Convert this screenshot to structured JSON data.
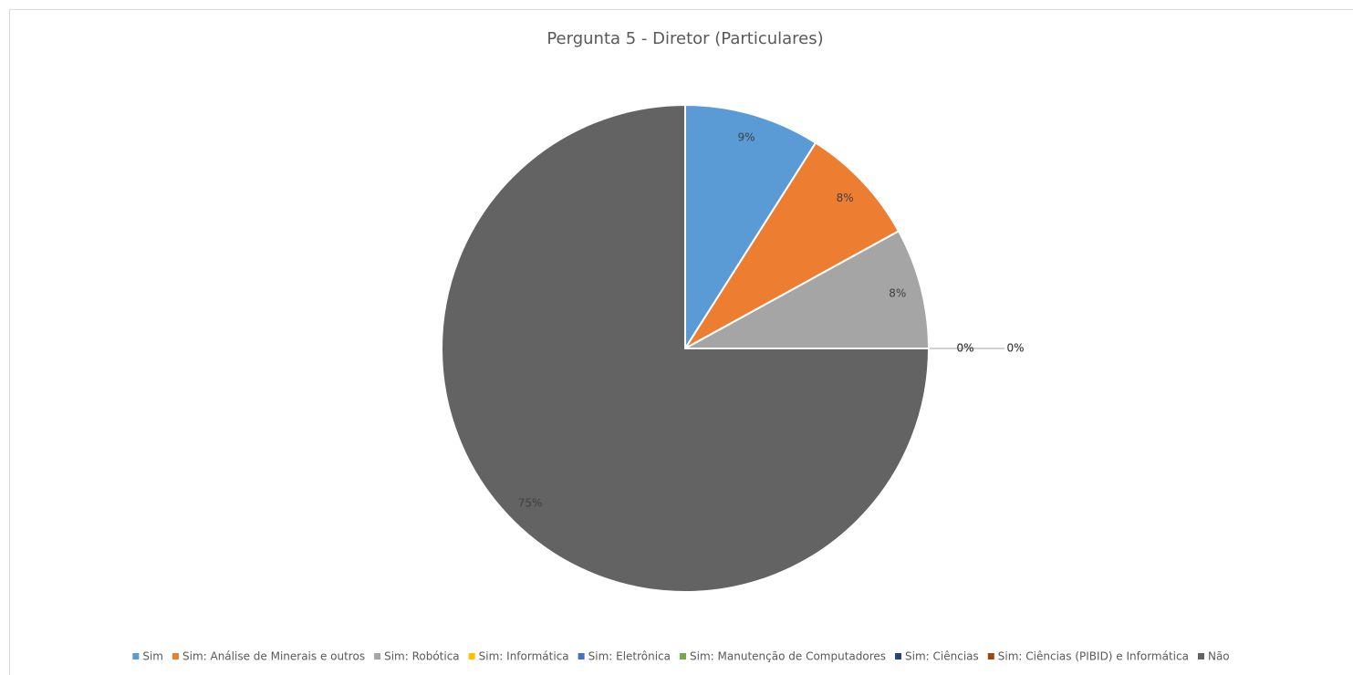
{
  "chart_data": {
    "type": "pie",
    "title": "Pergunta 5 - Diretor (Particulares)",
    "categories": [
      "Sim",
      "Sim: Análise de Minerais e outros",
      "Sim: Robótica",
      "Sim: Informática",
      "Sim: Eletrônica",
      "Sim: Manutenção de Computadores",
      "Sim: Ciências",
      "Sim: Ciências (PIBID) e Informática",
      "Não"
    ],
    "values": [
      9,
      8,
      8,
      0,
      0,
      0,
      0,
      0,
      75
    ],
    "value_labels": [
      "9%",
      "8%",
      "8%",
      "0%",
      "0%",
      "0%",
      "0%",
      "0%",
      "75%"
    ],
    "colors": [
      "#5b9bd5",
      "#ed7d31",
      "#a5a5a5",
      "#ffc000",
      "#4472c4",
      "#70ad47",
      "#264478",
      "#9e480e",
      "#636363"
    ],
    "legend": "bottom"
  }
}
